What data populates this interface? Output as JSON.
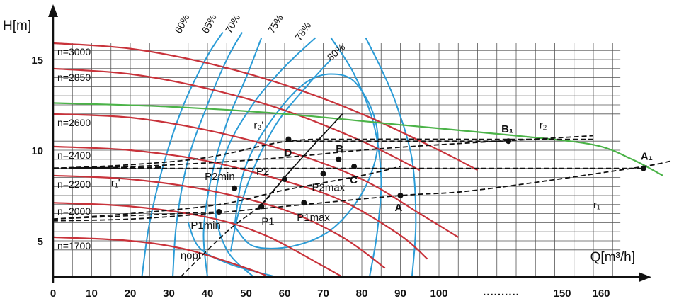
{
  "chart_data": {
    "type": "line",
    "xlabel": "Q[m³/h]",
    "ylabel": "H[m]",
    "x_ticks": [
      "0",
      "10",
      "20",
      "30",
      "40",
      "50",
      "60",
      "70",
      "80",
      "90",
      "100",
      "150",
      "160"
    ],
    "x_break": "..........",
    "y_ticks": [
      "5",
      "10",
      "15"
    ],
    "speed_curves": [
      {
        "label": "n=3000",
        "points": [
          [
            0,
            15.9
          ],
          [
            20,
            15.6
          ],
          [
            40,
            14.8
          ],
          [
            60,
            13.6
          ],
          [
            80,
            12.0
          ],
          [
            100,
            10.0
          ],
          [
            110,
            8.9
          ]
        ]
      },
      {
        "label": "n=2850",
        "points": [
          [
            0,
            14.5
          ],
          [
            20,
            14.2
          ],
          [
            40,
            13.4
          ],
          [
            60,
            12.2
          ],
          [
            80,
            10.5
          ],
          [
            95,
            8.9
          ]
        ]
      },
      {
        "label": "n=2600",
        "points": [
          [
            0,
            12.0
          ],
          [
            20,
            11.8
          ],
          [
            40,
            11.1
          ],
          [
            60,
            10.0
          ],
          [
            80,
            8.4
          ],
          [
            95,
            6.5
          ],
          [
            105,
            5.2
          ]
        ]
      },
      {
        "label": "n=2400",
        "points": [
          [
            0,
            10.2
          ],
          [
            20,
            10.0
          ],
          [
            40,
            9.4
          ],
          [
            60,
            8.3
          ],
          [
            75,
            7.2
          ],
          [
            90,
            5.3
          ],
          [
            97,
            4.0
          ]
        ]
      },
      {
        "label": "n=2200",
        "points": [
          [
            0,
            8.6
          ],
          [
            20,
            8.4
          ],
          [
            40,
            7.8
          ],
          [
            60,
            6.7
          ],
          [
            75,
            5.2
          ],
          [
            86,
            3.5
          ]
        ]
      },
      {
        "label": "n=2000",
        "points": [
          [
            0,
            7.1
          ],
          [
            20,
            6.9
          ],
          [
            40,
            6.3
          ],
          [
            55,
            5.3
          ],
          [
            70,
            3.6
          ],
          [
            75,
            3.0
          ]
        ]
      },
      {
        "label": "n=1700",
        "points": [
          [
            0,
            5.2
          ],
          [
            20,
            5.0
          ],
          [
            35,
            4.5
          ],
          [
            50,
            3.5
          ],
          [
            55,
            3.1
          ]
        ]
      }
    ],
    "system_curve": {
      "points": [
        [
          0,
          12.6
        ],
        [
          30,
          12.4
        ],
        [
          60,
          12.0
        ],
        [
          90,
          11.4
        ],
        [
          120,
          10.8
        ],
        [
          140,
          10.3
        ],
        [
          150,
          9.5
        ],
        [
          158,
          8.6
        ]
      ]
    },
    "efficiency_labels": [
      "60%",
      "65%",
      "70%",
      "75%",
      "78%",
      "80%"
    ],
    "resistance_curves": [
      {
        "label": "r₂",
        "points": [
          [
            0,
            9.0
          ],
          [
            20,
            9.1
          ],
          [
            40,
            9.3
          ],
          [
            60,
            9.6
          ],
          [
            80,
            10.0
          ],
          [
            100,
            10.3
          ],
          [
            140,
            10.8
          ]
        ]
      },
      {
        "label": "r₂'",
        "points": [
          [
            0,
            9.0
          ],
          [
            20,
            9.2
          ],
          [
            40,
            9.6
          ],
          [
            61,
            10.5
          ],
          [
            80,
            10.6
          ],
          [
            110,
            10.6
          ],
          [
            140,
            10.6
          ]
        ]
      },
      {
        "label": "r₁",
        "points": [
          [
            0,
            6.1
          ],
          [
            20,
            6.2
          ],
          [
            40,
            6.5
          ],
          [
            60,
            6.9
          ],
          [
            90,
            7.5
          ],
          [
            110,
            7.8
          ],
          [
            150,
            9.0
          ],
          [
            160,
            9.4
          ]
        ]
      },
      {
        "label": "r₁'",
        "points": [
          [
            0,
            6.2
          ],
          [
            20,
            6.5
          ],
          [
            43,
            7.0
          ],
          [
            60,
            7.8
          ],
          [
            80,
            8.6
          ],
          [
            90,
            9.1
          ]
        ]
      }
    ],
    "eta_opt_line": {
      "label": "ηopt",
      "points": [
        [
          33,
          3.0
        ],
        [
          45,
          5.5
        ],
        [
          54,
          7.0
        ],
        [
          60,
          8.5
        ],
        [
          65,
          9.7
        ],
        [
          75,
          12.0
        ]
      ]
    },
    "operating_points": [
      {
        "label": "A",
        "x": 90,
        "y": 7.5
      },
      {
        "label": "A₁",
        "x": 153,
        "y": 9.0
      },
      {
        "label": "B",
        "x": 74,
        "y": 9.5
      },
      {
        "label": "B₁",
        "x": 118,
        "y": 10.5
      },
      {
        "label": "C",
        "x": 78,
        "y": 9.1
      },
      {
        "label": "D",
        "x": 61,
        "y": 10.6
      },
      {
        "label": "P1",
        "x": 54,
        "y": 6.9
      },
      {
        "label": "P1min",
        "x": 43,
        "y": 6.6
      },
      {
        "label": "P1max",
        "x": 65,
        "y": 7.1
      },
      {
        "label": "P2",
        "x": 60,
        "y": 8.4
      },
      {
        "label": "P2min",
        "x": 47,
        "y": 7.9
      },
      {
        "label": "P2max",
        "x": 70,
        "y": 8.7
      }
    ],
    "grid": true,
    "xlim": [
      0,
      160
    ],
    "ylim": [
      3,
      16.5
    ]
  },
  "colors": {
    "speed": "#c8323a",
    "efficiency": "#2a9bd6",
    "system": "#4bb348",
    "resistance": "#111111",
    "grid": "#555555"
  }
}
